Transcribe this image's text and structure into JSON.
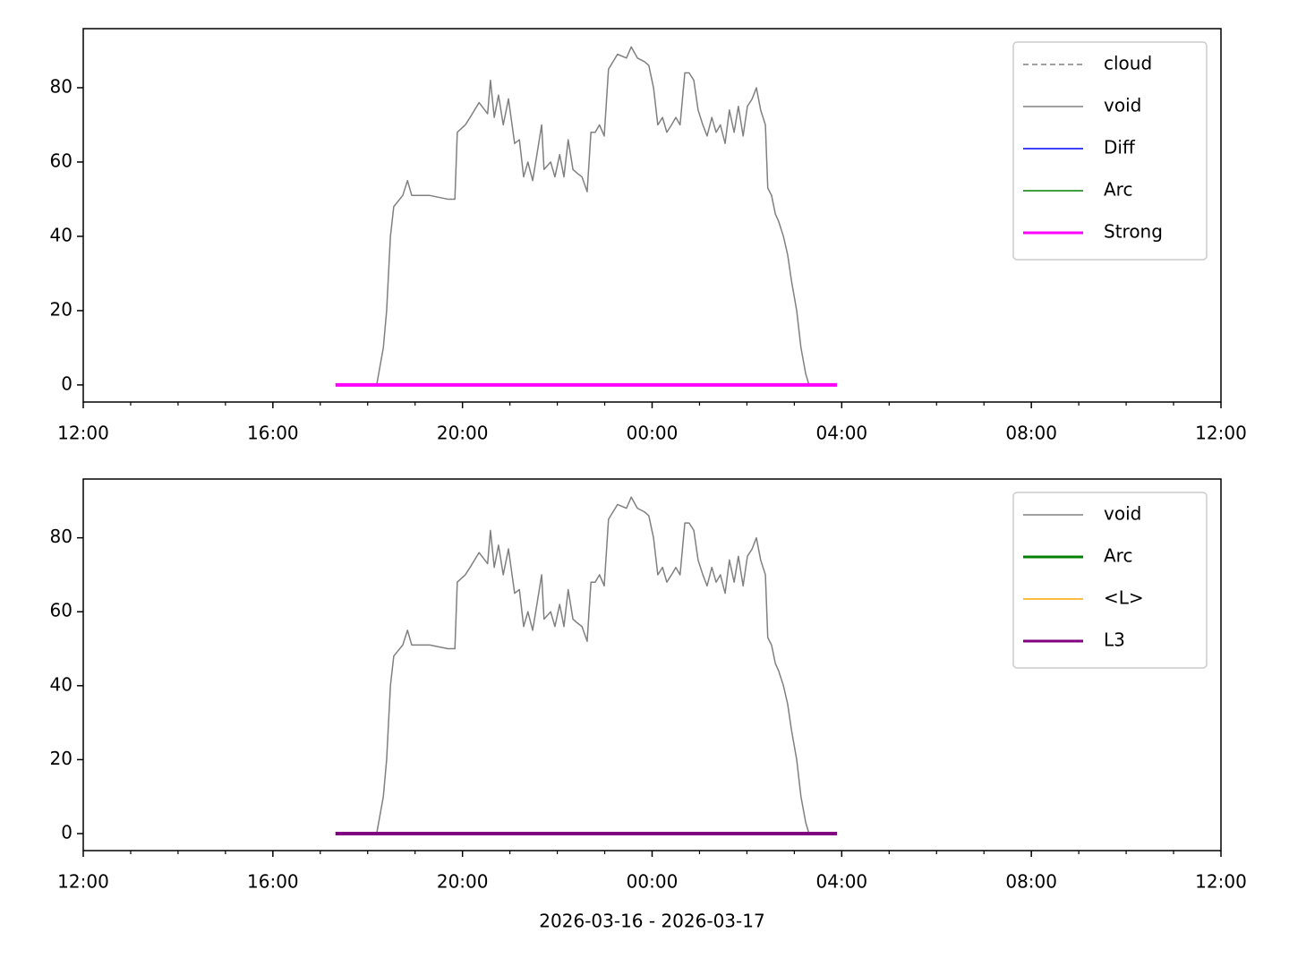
{
  "chart_data": [
    {
      "type": "line",
      "legend": "upper right",
      "xlim": [
        0,
        24
      ],
      "xticks": [
        {
          "value": 0,
          "label": "12:00"
        },
        {
          "value": 4,
          "label": "16:00"
        },
        {
          "value": 8,
          "label": "20:00"
        },
        {
          "value": 12,
          "label": "00:00"
        },
        {
          "value": 16,
          "label": "04:00"
        },
        {
          "value": 20,
          "label": "08:00"
        },
        {
          "value": 24,
          "label": "12:00"
        }
      ],
      "xminorticks": [
        1,
        2,
        3,
        5,
        6,
        7,
        9,
        10,
        11,
        13,
        14,
        15,
        17,
        18,
        19,
        21,
        22,
        23
      ],
      "ylim": [
        -4.6,
        95.9
      ],
      "yticks": [
        0,
        20,
        40,
        60,
        80
      ],
      "series": [
        {
          "name": "cloud",
          "color": "#808080",
          "linestyle": "dashed",
          "linewidth": 1.5,
          "x": [],
          "values": []
        },
        {
          "name": "void",
          "color": "#808080",
          "linestyle": "solid",
          "linewidth": 1.5,
          "x": [
            6.19,
            6.33,
            6.4,
            6.48,
            6.55,
            6.74,
            6.84,
            6.93,
            7.31,
            7.69,
            7.84,
            7.89,
            8.06,
            8.16,
            8.35,
            8.53,
            8.59,
            8.67,
            8.76,
            8.86,
            8.97,
            9.1,
            9.2,
            9.29,
            9.38,
            9.48,
            9.57,
            9.67,
            9.72,
            9.86,
            9.95,
            10.05,
            10.14,
            10.23,
            10.33,
            10.42,
            10.52,
            10.63,
            10.71,
            10.8,
            10.89,
            10.99,
            11.08,
            11.27,
            11.46,
            11.56,
            11.69,
            11.84,
            11.93,
            12.03,
            12.12,
            12.22,
            12.31,
            12.41,
            12.5,
            12.59,
            12.69,
            12.78,
            12.88,
            12.97,
            13.07,
            13.16,
            13.26,
            13.35,
            13.44,
            13.54,
            13.63,
            13.73,
            13.82,
            13.92,
            14.01,
            14.11,
            14.2,
            14.29,
            14.39,
            14.44,
            14.52,
            14.6,
            14.67,
            14.77,
            14.86,
            14.94,
            15.05,
            15.14,
            15.24,
            15.31
          ],
          "values": [
            0,
            10,
            20,
            40,
            48,
            51,
            55,
            51,
            51,
            50,
            50,
            68,
            70,
            72,
            76,
            73,
            82,
            72,
            78,
            70,
            77,
            65,
            66,
            56,
            60,
            55,
            62,
            70,
            58,
            60,
            56,
            62,
            56,
            66,
            58,
            57,
            56,
            52,
            68,
            68,
            70,
            67,
            85,
            89,
            88,
            91,
            88,
            87,
            86,
            80,
            70,
            72,
            68,
            70,
            72,
            70,
            84,
            84,
            82,
            74,
            70,
            67,
            72,
            68,
            70,
            65,
            74,
            68,
            75,
            67,
            75,
            77,
            80,
            74,
            70,
            53,
            51,
            46,
            44,
            40,
            35,
            28,
            20,
            10,
            3,
            0
          ]
        },
        {
          "name": "Diff",
          "color": "#0000ff",
          "linestyle": "solid",
          "linewidth": 1.5,
          "x": [],
          "values": []
        },
        {
          "name": "Arc",
          "color": "#008000",
          "linestyle": "solid",
          "linewidth": 1.5,
          "x": [],
          "values": []
        },
        {
          "name": "Strong",
          "color": "#ff00ff",
          "linestyle": "solid",
          "linewidth": 4,
          "x": [
            5.32,
            15.9
          ],
          "values": [
            0,
            0
          ]
        }
      ]
    },
    {
      "type": "line",
      "legend": "upper right",
      "xlabel": "2026-03-16 - 2026-03-17",
      "xlim": [
        0,
        24
      ],
      "xticks": [
        {
          "value": 0,
          "label": "12:00"
        },
        {
          "value": 4,
          "label": "16:00"
        },
        {
          "value": 8,
          "label": "20:00"
        },
        {
          "value": 12,
          "label": "00:00"
        },
        {
          "value": 16,
          "label": "04:00"
        },
        {
          "value": 20,
          "label": "08:00"
        },
        {
          "value": 24,
          "label": "12:00"
        }
      ],
      "xminorticks": [
        1,
        2,
        3,
        5,
        6,
        7,
        9,
        10,
        11,
        13,
        14,
        15,
        17,
        18,
        19,
        21,
        22,
        23
      ],
      "ylim": [
        -4.6,
        95.9
      ],
      "yticks": [
        0,
        20,
        40,
        60,
        80
      ],
      "series": [
        {
          "name": "void",
          "color": "#808080",
          "linestyle": "solid",
          "linewidth": 1.5,
          "x": [
            6.19,
            6.33,
            6.4,
            6.48,
            6.55,
            6.74,
            6.84,
            6.93,
            7.31,
            7.69,
            7.84,
            7.89,
            8.06,
            8.16,
            8.35,
            8.53,
            8.59,
            8.67,
            8.76,
            8.86,
            8.97,
            9.1,
            9.2,
            9.29,
            9.38,
            9.48,
            9.57,
            9.67,
            9.72,
            9.86,
            9.95,
            10.05,
            10.14,
            10.23,
            10.33,
            10.42,
            10.52,
            10.63,
            10.71,
            10.8,
            10.89,
            10.99,
            11.08,
            11.27,
            11.46,
            11.56,
            11.69,
            11.84,
            11.93,
            12.03,
            12.12,
            12.22,
            12.31,
            12.41,
            12.5,
            12.59,
            12.69,
            12.78,
            12.88,
            12.97,
            13.07,
            13.16,
            13.26,
            13.35,
            13.44,
            13.54,
            13.63,
            13.73,
            13.82,
            13.92,
            14.01,
            14.11,
            14.2,
            14.29,
            14.39,
            14.44,
            14.52,
            14.6,
            14.67,
            14.77,
            14.86,
            14.94,
            15.05,
            15.14,
            15.24,
            15.31
          ],
          "values": [
            0,
            10,
            20,
            40,
            48,
            51,
            55,
            51,
            51,
            50,
            50,
            68,
            70,
            72,
            76,
            73,
            82,
            72,
            78,
            70,
            77,
            65,
            66,
            56,
            60,
            55,
            62,
            70,
            58,
            60,
            56,
            62,
            56,
            66,
            58,
            57,
            56,
            52,
            68,
            68,
            70,
            67,
            85,
            89,
            88,
            91,
            88,
            87,
            86,
            80,
            70,
            72,
            68,
            70,
            72,
            70,
            84,
            84,
            82,
            74,
            70,
            67,
            72,
            68,
            70,
            65,
            74,
            68,
            75,
            67,
            75,
            77,
            80,
            74,
            70,
            53,
            51,
            46,
            44,
            40,
            35,
            28,
            20,
            10,
            3,
            0
          ]
        },
        {
          "name": "Arc",
          "color": "#008000",
          "linestyle": "solid",
          "linewidth": 3,
          "x": [],
          "values": []
        },
        {
          "name": "<L>",
          "color": "#ffa500",
          "linestyle": "solid",
          "linewidth": 1.5,
          "x": [],
          "values": []
        },
        {
          "name": "L3",
          "color": "#800080",
          "linestyle": "solid",
          "linewidth": 4,
          "x": [
            5.32,
            15.9
          ],
          "values": [
            0,
            0
          ]
        }
      ]
    }
  ]
}
